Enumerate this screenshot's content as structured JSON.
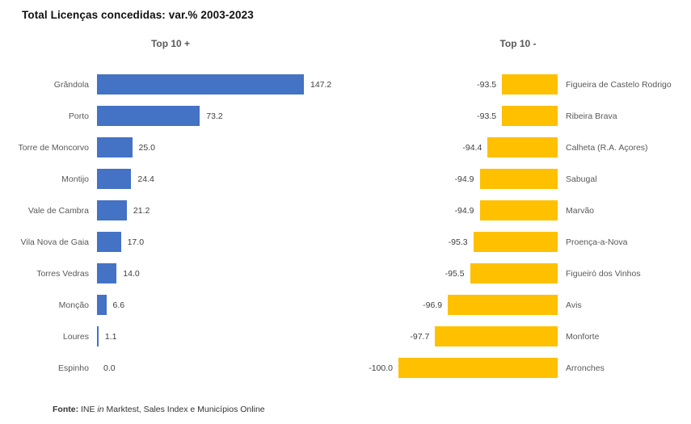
{
  "title": "Total Licenças concedidas: var.% 2003-2023",
  "colors": {
    "positive_bar": "#4472C4",
    "negative_bar": "#FFC000",
    "category_label": "#595959",
    "value_label": "#404040",
    "header": "#595959",
    "background": "#FFFFFF"
  },
  "footer": {
    "label": "Fonte:",
    "pre": " INE ",
    "italic": "in",
    "post": " Marktest, Sales Index e Municípios Online"
  },
  "chart_data": [
    {
      "type": "bar",
      "orientation": "horizontal",
      "title": "Top 10 +",
      "legend": false,
      "grid": false,
      "bar_color": "#4472C4",
      "value_label_side": "right-of-bar",
      "category_label_side": "left",
      "xlim": [
        0,
        170
      ],
      "categories": [
        "Grândola",
        "Porto",
        "Torre de Moncorvo",
        "Montijo",
        "Vale de Cambra",
        "Vila Nova de Gaia",
        "Torres Vedras",
        "Monção",
        "Loures",
        "Espinho"
      ],
      "values": [
        147.2,
        73.2,
        25.0,
        24.4,
        21.2,
        17.0,
        14.0,
        6.6,
        1.1,
        0.0
      ]
    },
    {
      "type": "bar",
      "orientation": "horizontal",
      "title": "Top 10 -",
      "legend": false,
      "grid": false,
      "bar_color": "#FFC000",
      "value_label_side": "left-of-bar",
      "category_label_side": "right",
      "xlim": [
        -101,
        -90
      ],
      "categories": [
        "Figueira de Castelo Rodrigo",
        "Ribeira Brava",
        "Calheta (R.A. Açores)",
        "Sabugal",
        "Marvão",
        "Proença-a-Nova",
        "Figueiró dos Vinhos",
        "Avis",
        "Monforte",
        "Arronches"
      ],
      "values": [
        -93.5,
        -93.5,
        -94.4,
        -94.9,
        -94.9,
        -95.3,
        -95.5,
        -96.9,
        -97.7,
        -100.0
      ]
    }
  ]
}
